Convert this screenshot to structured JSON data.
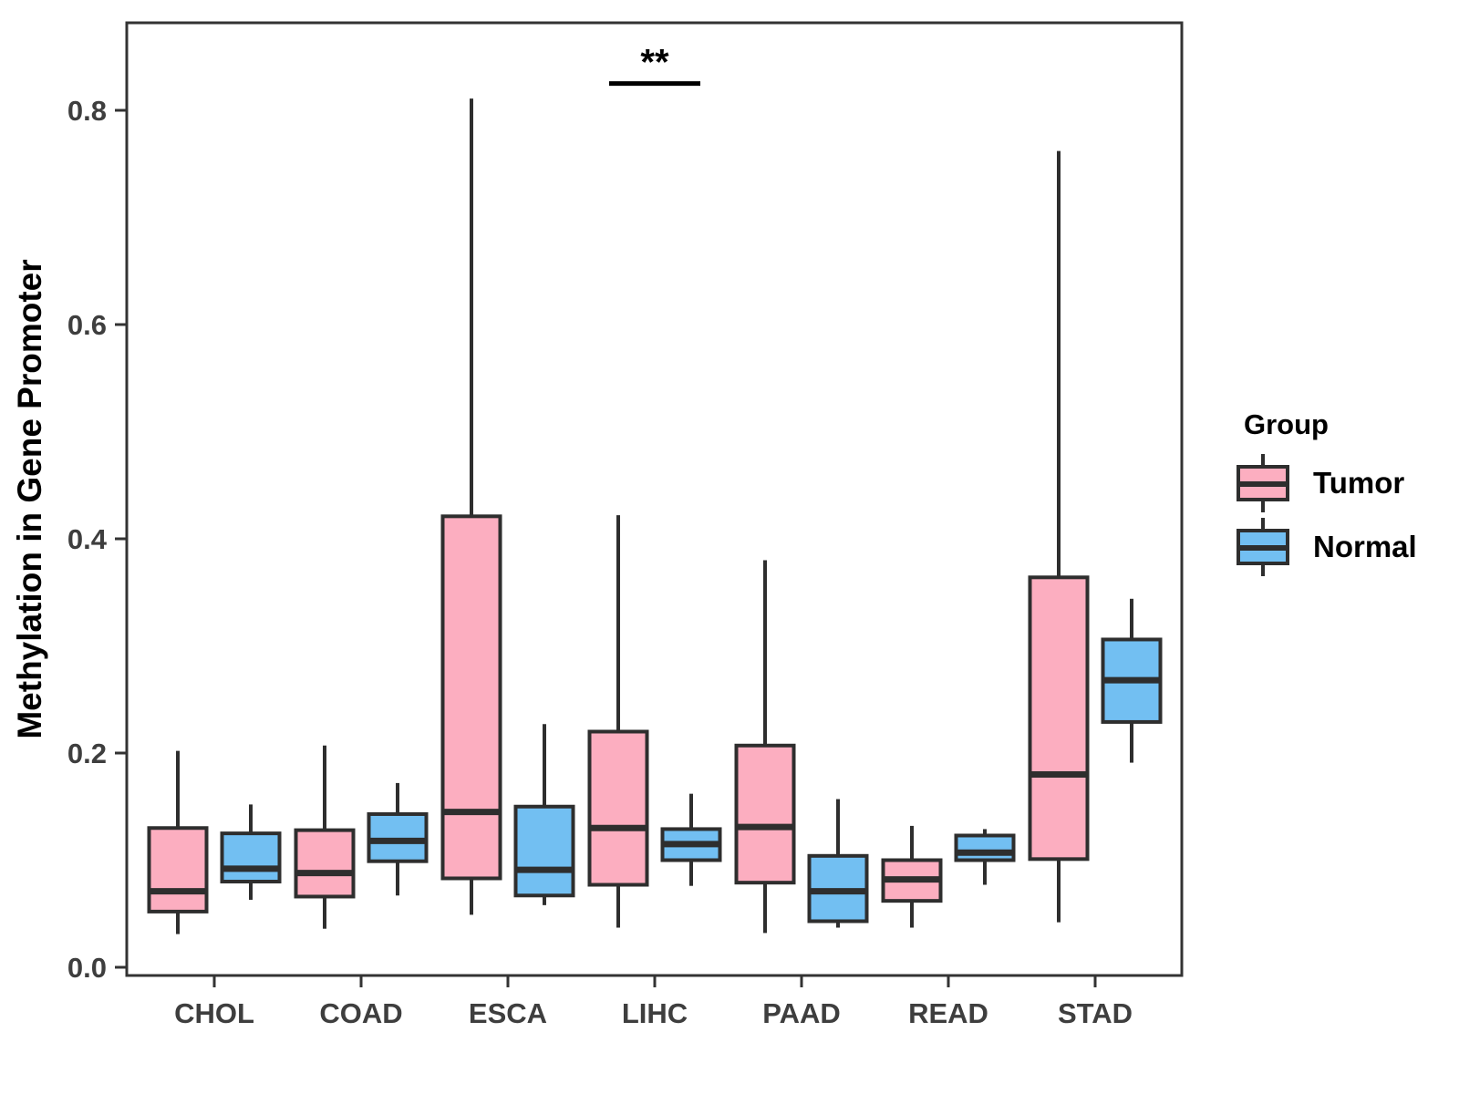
{
  "legend": {
    "title": "Group",
    "items": [
      {
        "label": "Tumor",
        "color": "#FCAEC0"
      },
      {
        "label": "Normal",
        "color": "#72BFF2"
      }
    ]
  },
  "chart_data": {
    "type": "boxplot",
    "title": "",
    "xlabel": "",
    "ylabel": "Methylation in Gene Promoter",
    "ylim": [
      0.0,
      0.88
    ],
    "yticks": [
      0.0,
      0.2,
      0.4,
      0.6,
      0.8
    ],
    "grid": false,
    "legend_position": "right",
    "categories": [
      "CHOL",
      "COAD",
      "ESCA",
      "LIHC",
      "PAAD",
      "READ",
      "STAD"
    ],
    "groups": [
      {
        "name": "Tumor",
        "color": "#FCAEC0"
      },
      {
        "name": "Normal",
        "color": "#72BFF2"
      }
    ],
    "boxes": [
      {
        "category": "CHOL",
        "group": "Tumor",
        "min": 0.031,
        "q1": 0.052,
        "median": 0.071,
        "q3": 0.13,
        "max": 0.202
      },
      {
        "category": "CHOL",
        "group": "Normal",
        "min": 0.063,
        "q1": 0.08,
        "median": 0.092,
        "q3": 0.125,
        "max": 0.152
      },
      {
        "category": "COAD",
        "group": "Tumor",
        "min": 0.036,
        "q1": 0.066,
        "median": 0.088,
        "q3": 0.128,
        "max": 0.207
      },
      {
        "category": "COAD",
        "group": "Normal",
        "min": 0.067,
        "q1": 0.099,
        "median": 0.118,
        "q3": 0.143,
        "max": 0.172
      },
      {
        "category": "ESCA",
        "group": "Tumor",
        "min": 0.049,
        "q1": 0.083,
        "median": 0.145,
        "q3": 0.421,
        "max": 0.811
      },
      {
        "category": "ESCA",
        "group": "Normal",
        "min": 0.058,
        "q1": 0.067,
        "median": 0.091,
        "q3": 0.15,
        "max": 0.227
      },
      {
        "category": "LIHC",
        "group": "Tumor",
        "min": 0.037,
        "q1": 0.077,
        "median": 0.13,
        "q3": 0.22,
        "max": 0.422
      },
      {
        "category": "LIHC",
        "group": "Normal",
        "min": 0.076,
        "q1": 0.1,
        "median": 0.115,
        "q3": 0.129,
        "max": 0.162
      },
      {
        "category": "PAAD",
        "group": "Tumor",
        "min": 0.032,
        "q1": 0.079,
        "median": 0.131,
        "q3": 0.207,
        "max": 0.38
      },
      {
        "category": "PAAD",
        "group": "Normal",
        "min": 0.037,
        "q1": 0.043,
        "median": 0.071,
        "q3": 0.104,
        "max": 0.157
      },
      {
        "category": "READ",
        "group": "Tumor",
        "min": 0.037,
        "q1": 0.062,
        "median": 0.082,
        "q3": 0.1,
        "max": 0.132
      },
      {
        "category": "READ",
        "group": "Normal",
        "min": 0.077,
        "q1": 0.1,
        "median": 0.107,
        "q3": 0.123,
        "max": 0.129
      },
      {
        "category": "STAD",
        "group": "Tumor",
        "min": 0.042,
        "q1": 0.101,
        "median": 0.18,
        "q3": 0.364,
        "max": 0.762
      },
      {
        "category": "STAD",
        "group": "Normal",
        "min": 0.191,
        "q1": 0.229,
        "median": 0.268,
        "q3": 0.306,
        "max": 0.344
      }
    ],
    "annotations": [
      {
        "label": "**",
        "category": "LIHC",
        "y": 0.825
      }
    ],
    "colors": {
      "box_line": "#2e2e2e",
      "panel_border": "#333333",
      "tick_label": "#3e3e3e",
      "axis_title": "#000000",
      "annotation": "#000000"
    }
  }
}
